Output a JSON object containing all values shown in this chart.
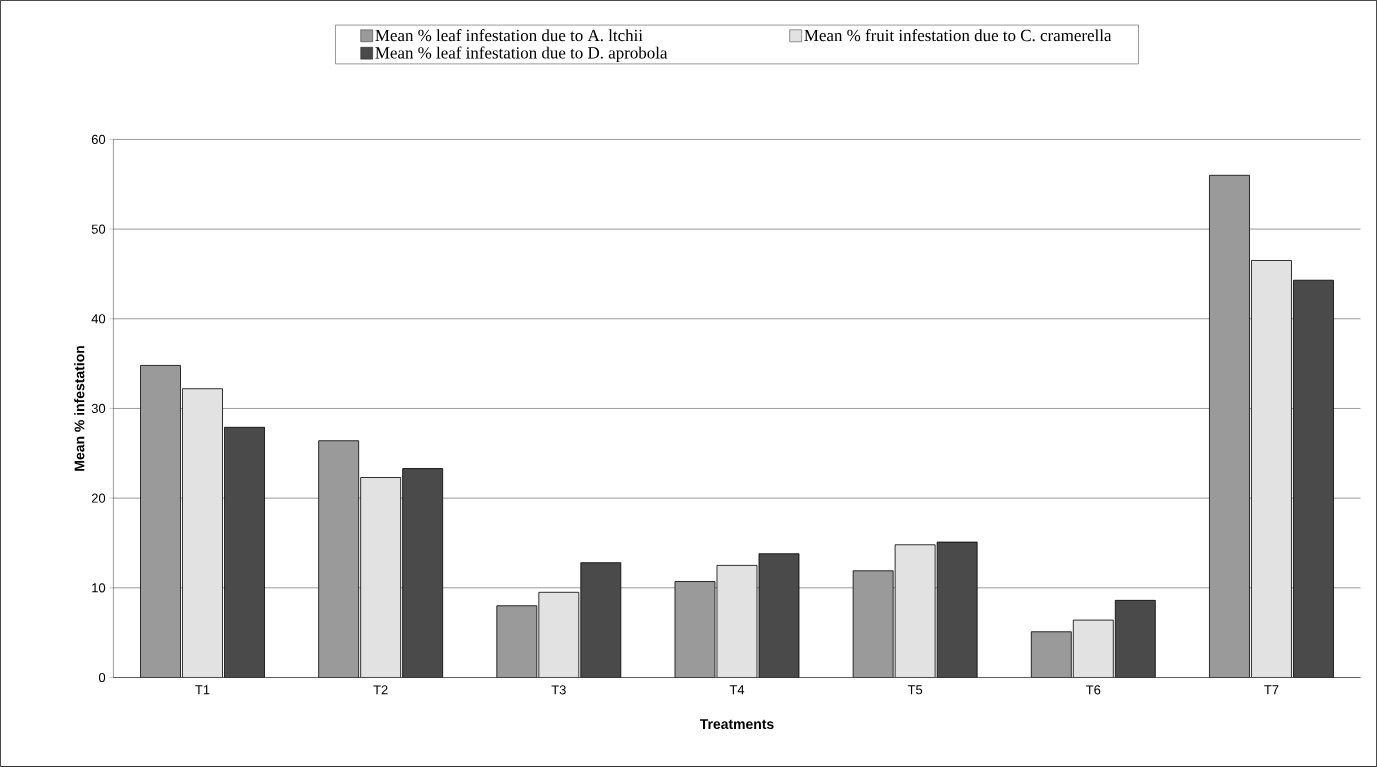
{
  "chart_data": {
    "type": "bar",
    "xlabel": "Treatments",
    "ylabel": "Mean % infestation",
    "categories": [
      "T1",
      "T2",
      "T3",
      "T4",
      "T5",
      "T6",
      "T7"
    ],
    "series": [
      {
        "name": "Mean % leaf infestation due to A. ltchii",
        "color": "#9a9a9a",
        "values": [
          34.8,
          26.4,
          8.0,
          10.7,
          11.9,
          5.1,
          56.0
        ]
      },
      {
        "name": "Mean % fruit infestation due to C. cramerella",
        "color": "#e2e2e2",
        "values": [
          32.2,
          22.3,
          9.5,
          12.5,
          14.8,
          6.4,
          46.5
        ]
      },
      {
        "name": "Mean % leaf infestation due to D. aprobola",
        "color": "#4a4a4a",
        "values": [
          27.9,
          23.3,
          12.8,
          13.8,
          15.1,
          8.6,
          44.3
        ]
      }
    ],
    "ylim": [
      0,
      60
    ],
    "yticks": [
      0,
      10,
      20,
      30,
      40,
      50,
      60
    ],
    "grid": "y",
    "legend": "top"
  }
}
